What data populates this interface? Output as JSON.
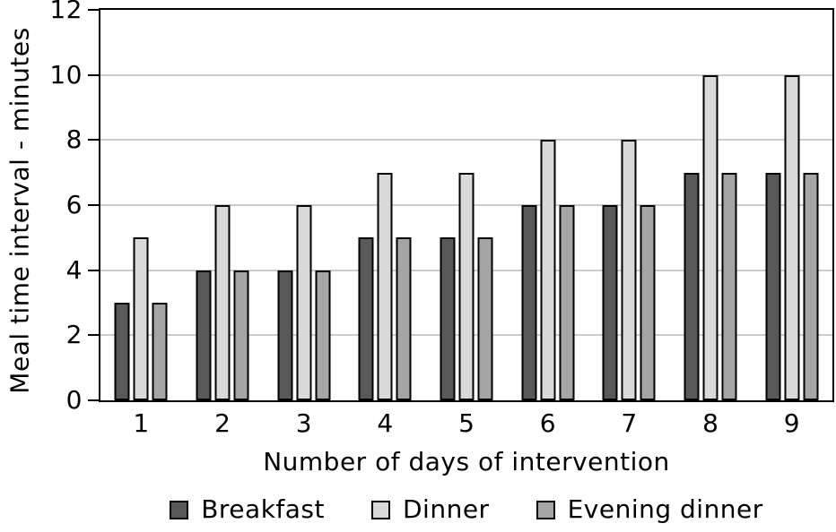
{
  "chart_data": {
    "type": "bar",
    "title": "",
    "categories": [
      "1",
      "2",
      "3",
      "4",
      "5",
      "6",
      "7",
      "8",
      "9"
    ],
    "series": [
      {
        "name": "Breakfast",
        "color": "#595959",
        "values": [
          3,
          4,
          4,
          5,
          5,
          6,
          6,
          7,
          7
        ]
      },
      {
        "name": "Dinner",
        "color": "#d9d9d9",
        "values": [
          5,
          6,
          6,
          7,
          7,
          8,
          8,
          10,
          10
        ]
      },
      {
        "name": "Evening dinner",
        "color": "#a5a5a5",
        "values": [
          3,
          4,
          4,
          5,
          5,
          6,
          6,
          7,
          7
        ]
      }
    ],
    "xlabel": "Number of days of intervention",
    "ylabel": "Meal time interval - minutes",
    "ylim": [
      0,
      12
    ],
    "y_ticks": [
      0,
      2,
      4,
      6,
      8,
      10,
      12
    ],
    "grid": true,
    "legend_position": "bottom"
  },
  "colors": {
    "axis": "#000000",
    "gridline": "#cccccc",
    "background": "#ffffff"
  }
}
